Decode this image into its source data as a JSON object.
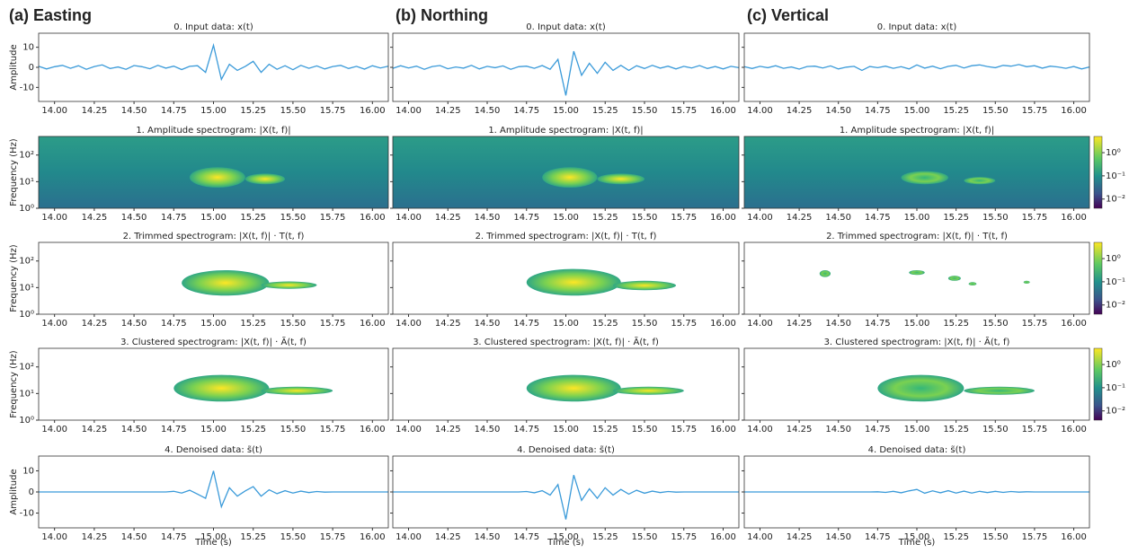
{
  "x": [
    13.9,
    13.95,
    14,
    14.05,
    14.1,
    14.15,
    14.2,
    14.25,
    14.3,
    14.35,
    14.4,
    14.45,
    14.5,
    14.55,
    14.6,
    14.65,
    14.7,
    14.75,
    14.8,
    14.85,
    14.9,
    14.95,
    15,
    15.05,
    15.1,
    15.15,
    15.2,
    15.25,
    15.3,
    15.35,
    15.4,
    15.45,
    15.5,
    15.55,
    15.6,
    15.65,
    15.7,
    15.75,
    15.8,
    15.85,
    15.9,
    15.95,
    16,
    16.05,
    16.1
  ],
  "xlim": [
    13.9,
    16.1
  ],
  "xticks": [
    {
      "value": 14,
      "label": "14.00"
    },
    14.25,
    {
      "value": 14.5,
      "label": "14.50"
    },
    14.75,
    {
      "value": 15,
      "label": "15.00"
    },
    15.25,
    {
      "value": 15.5,
      "label": "15.50"
    },
    15.75,
    {
      "value": 16,
      "label": "16.00"
    }
  ],
  "xlabel": "Time (s)",
  "amp_ylabel": "Amplitude",
  "freq_ylabel": "Frequency (Hz)",
  "amp_ylim": [
    -17,
    17
  ],
  "amp_yticks": [
    -10,
    0,
    10
  ],
  "freq_ylim": [
    1,
    500
  ],
  "freq_yticks": [
    {
      "value": 1,
      "label": "10⁰"
    },
    {
      "value": 10,
      "label": "10¹"
    },
    {
      "value": 100,
      "label": "10²"
    }
  ],
  "colorbar_lim": [
    0.004,
    5
  ],
  "colorbar_ticks": [
    {
      "value": 1,
      "label": "10⁰"
    },
    {
      "value": 0.1,
      "label": "10⁻¹"
    },
    {
      "value": 0.01,
      "label": "10⁻²"
    }
  ],
  "line_color": "#3a9ad9",
  "row_titles": [
    "0. Input data: x(t)",
    "1. Amplitude spectrogram: |X(t, f)|",
    "2. Trimmed  spectrogram: |X(t, f)| · T(t, f)",
    "3. Clustered  spectrogram: |X(t, f)| · Ã(t, f)",
    "4. Denoised data: s̃(t)"
  ],
  "columns": [
    {
      "title": "(a) Easting",
      "blob_color": "#fde725",
      "input": [
        0.5,
        -0.8,
        0.3,
        1,
        -0.5,
        0.8,
        -1,
        0.4,
        1.2,
        -0.6,
        0.2,
        -1,
        0.9,
        0.3,
        -0.7,
        1,
        -0.4,
        0.6,
        -1.1,
        0.5,
        0.8,
        -2.5,
        11,
        -6,
        1.5,
        -1.5,
        0.5,
        3,
        -2.5,
        1.5,
        -1,
        0.8,
        -1.2,
        1,
        -0.5,
        0.7,
        -0.8,
        0.4,
        1,
        -0.6,
        0.5,
        -0.9,
        0.8,
        -0.3,
        0.6
      ],
      "denoised": [
        0,
        0,
        0,
        0,
        0,
        0,
        0,
        0,
        0,
        0,
        0,
        0,
        0,
        0,
        0,
        0,
        0,
        0.3,
        -0.5,
        0.8,
        -1,
        -3,
        10,
        -7,
        2,
        -2,
        0.5,
        2.5,
        -2,
        1,
        -0.8,
        0.6,
        -0.5,
        0.4,
        -0.3,
        0.2,
        -0.1,
        0,
        0,
        0,
        0,
        0,
        0,
        0,
        0
      ],
      "spec": [
        [
          [
            14.85,
            15.2,
            6,
            35
          ],
          [
            15.2,
            15.45,
            8,
            20
          ]
        ],
        [
          [
            14.8,
            15.35,
            5,
            45
          ],
          [
            15.3,
            15.65,
            9,
            17
          ]
        ],
        [
          [
            14.75,
            15.35,
            5,
            50
          ],
          [
            15.3,
            15.75,
            9,
            18
          ]
        ]
      ]
    },
    {
      "title": "(b) Northing",
      "blob_color": "#fde725",
      "input": [
        -0.5,
        0.8,
        -0.3,
        0.6,
        -1,
        0.4,
        0.9,
        -0.7,
        0.2,
        -0.4,
        1,
        -0.8,
        0.5,
        -0.2,
        0.7,
        -1,
        0.3,
        0.6,
        -0.5,
        0.9,
        -1,
        4,
        -14,
        8,
        -4,
        2,
        -3,
        2.5,
        -1.5,
        1,
        -1.5,
        0.8,
        -0.6,
        1,
        -0.4,
        0.6,
        -0.8,
        0.5,
        -0.3,
        0.9,
        -0.6,
        0.4,
        -0.8,
        0.5,
        -0.2
      ],
      "denoised": [
        0,
        0,
        0,
        0,
        0,
        0,
        0,
        0,
        0,
        0,
        0,
        0,
        0,
        0,
        0,
        0,
        0,
        0.2,
        -0.4,
        0.6,
        -1.5,
        3.5,
        -13,
        8,
        -4,
        1.5,
        -3,
        2,
        -1.5,
        1.2,
        -1,
        0.8,
        -0.6,
        0.4,
        -0.3,
        0.2,
        -0.1,
        0,
        0,
        0,
        0,
        0,
        0,
        0,
        0
      ],
      "spec": [
        [
          [
            14.85,
            15.2,
            6,
            35
          ],
          [
            15.2,
            15.5,
            8,
            20
          ]
        ],
        [
          [
            14.75,
            15.35,
            5,
            50
          ],
          [
            15.3,
            15.7,
            8,
            18
          ]
        ],
        [
          [
            14.75,
            15.35,
            5,
            50
          ],
          [
            15.3,
            15.75,
            9,
            18
          ]
        ]
      ]
    },
    {
      "title": "(c) Vertical",
      "blob_color": "#35b779",
      "input": [
        0.3,
        -0.6,
        0.5,
        -0.2,
        0.8,
        -0.5,
        0.2,
        -0.9,
        0.4,
        0.6,
        -0.3,
        0.7,
        -0.8,
        0.1,
        0.5,
        -1.5,
        0.4,
        -0.2,
        0.6,
        -0.5,
        0.3,
        -0.8,
        1.2,
        -0.4,
        0.6,
        -0.7,
        0.5,
        1,
        -0.3,
        0.8,
        1.2,
        0.4,
        -0.2,
        1,
        0.6,
        1.4,
        0.3,
        0.8,
        -0.4,
        0.6,
        0.2,
        -0.5,
        0.4,
        -0.8,
        0.2
      ],
      "denoised": [
        0,
        0,
        0,
        0,
        0,
        0,
        0,
        0,
        0,
        0,
        0,
        0,
        0,
        0,
        0,
        0,
        0,
        0.1,
        -0.2,
        0.3,
        -0.4,
        0.5,
        1.2,
        -0.6,
        0.5,
        -0.4,
        0.6,
        -0.5,
        0.4,
        -0.5,
        0.3,
        -0.3,
        0.3,
        -0.2,
        0.2,
        -0.1,
        0.1,
        0,
        0,
        0,
        0,
        0,
        0,
        0,
        0
      ],
      "spec": [
        [
          [
            14.9,
            15.2,
            8,
            25
          ],
          [
            15.3,
            15.5,
            8,
            15
          ]
        ],
        [
          [
            14.38,
            14.45,
            25,
            45
          ],
          [
            14.95,
            15.05,
            30,
            45
          ],
          [
            15.2,
            15.28,
            18,
            28
          ],
          [
            15.33,
            15.38,
            12,
            16
          ],
          [
            15.68,
            15.72,
            14,
            18
          ]
        ],
        [
          [
            14.75,
            15.3,
            5,
            50
          ],
          [
            15.3,
            15.75,
            9,
            18
          ]
        ]
      ]
    }
  ]
}
